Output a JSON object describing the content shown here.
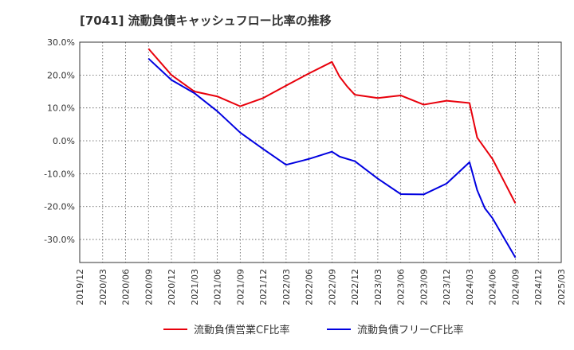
{
  "chart_data": {
    "type": "line",
    "title": "[7041]  流動負債キャッシュフロー比率の推移",
    "x_ticks": [
      "2019/12",
      "2020/03",
      "2020/06",
      "2020/09",
      "2020/12",
      "2021/03",
      "2021/06",
      "2021/09",
      "2021/12",
      "2022/03",
      "2022/06",
      "2022/09",
      "2022/12",
      "2023/03",
      "2023/06",
      "2023/09",
      "2023/12",
      "2024/03",
      "2024/06",
      "2024/09",
      "2024/12",
      "2025/03"
    ],
    "y_ticks": [
      "30.0%",
      "20.0%",
      "10.0%",
      "0.0%",
      "-10.0%",
      "-20.0%",
      "-30.0%"
    ],
    "ylim": [
      -37,
      30
    ],
    "grid": true,
    "legend_position": "bottom",
    "series": [
      {
        "name": "流動負債営業CF比率",
        "color": "#e8000b",
        "points": [
          [
            "2020/09",
            28.0
          ],
          [
            "2020/12",
            20.0
          ],
          [
            "2021/03",
            15.0
          ],
          [
            "2021/06",
            13.5
          ],
          [
            "2021/09",
            10.5
          ],
          [
            "2021/12",
            13.0
          ],
          [
            "2022/03",
            16.8
          ],
          [
            "2022/06",
            20.5
          ],
          [
            "2022/09",
            24.0
          ],
          [
            "2022/10",
            19.5
          ],
          [
            "2022/11",
            16.5
          ],
          [
            "2022/12",
            14.0
          ],
          [
            "2023/03",
            13.0
          ],
          [
            "2023/06",
            13.8
          ],
          [
            "2023/09",
            11.0
          ],
          [
            "2023/12",
            12.2
          ],
          [
            "2024/03",
            11.5
          ],
          [
            "2024/04",
            1.0
          ],
          [
            "2024/06",
            -5.5
          ],
          [
            "2024/09",
            -19.0
          ]
        ]
      },
      {
        "name": "流動負債フリーCF比率",
        "color": "#0000e0",
        "points": [
          [
            "2020/09",
            25.0
          ],
          [
            "2020/12",
            18.5
          ],
          [
            "2021/03",
            14.5
          ],
          [
            "2021/06",
            9.0
          ],
          [
            "2021/09",
            2.5
          ],
          [
            "2021/12",
            -2.5
          ],
          [
            "2022/03",
            -7.3
          ],
          [
            "2022/06",
            -5.5
          ],
          [
            "2022/09",
            -3.3
          ],
          [
            "2022/10",
            -4.8
          ],
          [
            "2022/12",
            -6.2
          ],
          [
            "2023/03",
            -11.5
          ],
          [
            "2023/06",
            -16.2
          ],
          [
            "2023/09",
            -16.3
          ],
          [
            "2023/12",
            -13.0
          ],
          [
            "2024/03",
            -6.5
          ],
          [
            "2024/04",
            -15.0
          ],
          [
            "2024/05",
            -20.5
          ],
          [
            "2024/06",
            -23.5
          ],
          [
            "2024/09",
            -35.5
          ]
        ]
      }
    ]
  }
}
